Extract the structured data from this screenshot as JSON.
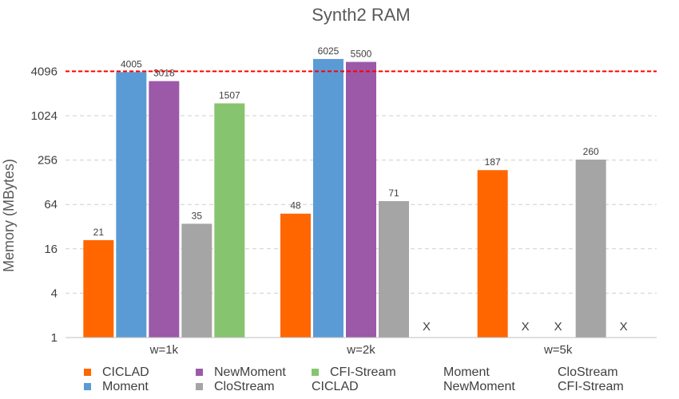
{
  "chart_data": {
    "type": "bar",
    "title": "Synth2 RAM",
    "ylabel": "Memory (MBytes)",
    "xlabel": "",
    "yscale": "log2",
    "ylim": [
      1,
      8192
    ],
    "yticks": [
      1,
      4,
      16,
      64,
      256,
      1024,
      4096
    ],
    "grid": true,
    "reference_line": {
      "value": 4096,
      "color": "#ff0000",
      "style": "dashed"
    },
    "categories": [
      "w=1k",
      "w=2k",
      "w=5k"
    ],
    "missing_marker": "X",
    "series": [
      {
        "name": "CICLAD",
        "color": "#ff6600",
        "values": [
          21,
          48,
          187
        ]
      },
      {
        "name": "Moment",
        "color": "#5b9bd5",
        "values": [
          4005,
          6025,
          null
        ]
      },
      {
        "name": "NewMoment",
        "color": "#9b59a8",
        "values": [
          3018,
          5500,
          null
        ]
      },
      {
        "name": "CloStream",
        "color": "#a5a5a5",
        "values": [
          35,
          71,
          260
        ]
      },
      {
        "name": "CFI-Stream",
        "color": "#87c46f",
        "values": [
          1507,
          null,
          null
        ]
      }
    ],
    "legend": {
      "placement": "bottom",
      "entries": [
        {
          "label": "CICLAD",
          "color": "#ff6600",
          "marker": true
        },
        {
          "label": "NewMoment",
          "color": "#9b59a8",
          "marker": true
        },
        {
          "label": "CFI-Stream",
          "color": "#87c46f",
          "marker": true
        },
        {
          "label": "Moment",
          "color": "",
          "marker": false
        },
        {
          "label": "CloStream",
          "color": "",
          "marker": false
        },
        {
          "label": "Moment",
          "color": "#5b9bd5",
          "marker": true
        },
        {
          "label": "CloStream",
          "color": "#a5a5a5",
          "marker": true
        },
        {
          "label": "CICLAD",
          "color": "",
          "marker": false
        },
        {
          "label": "NewMoment",
          "color": "",
          "marker": false
        },
        {
          "label": "CFI-Stream",
          "color": "",
          "marker": false
        }
      ]
    }
  }
}
